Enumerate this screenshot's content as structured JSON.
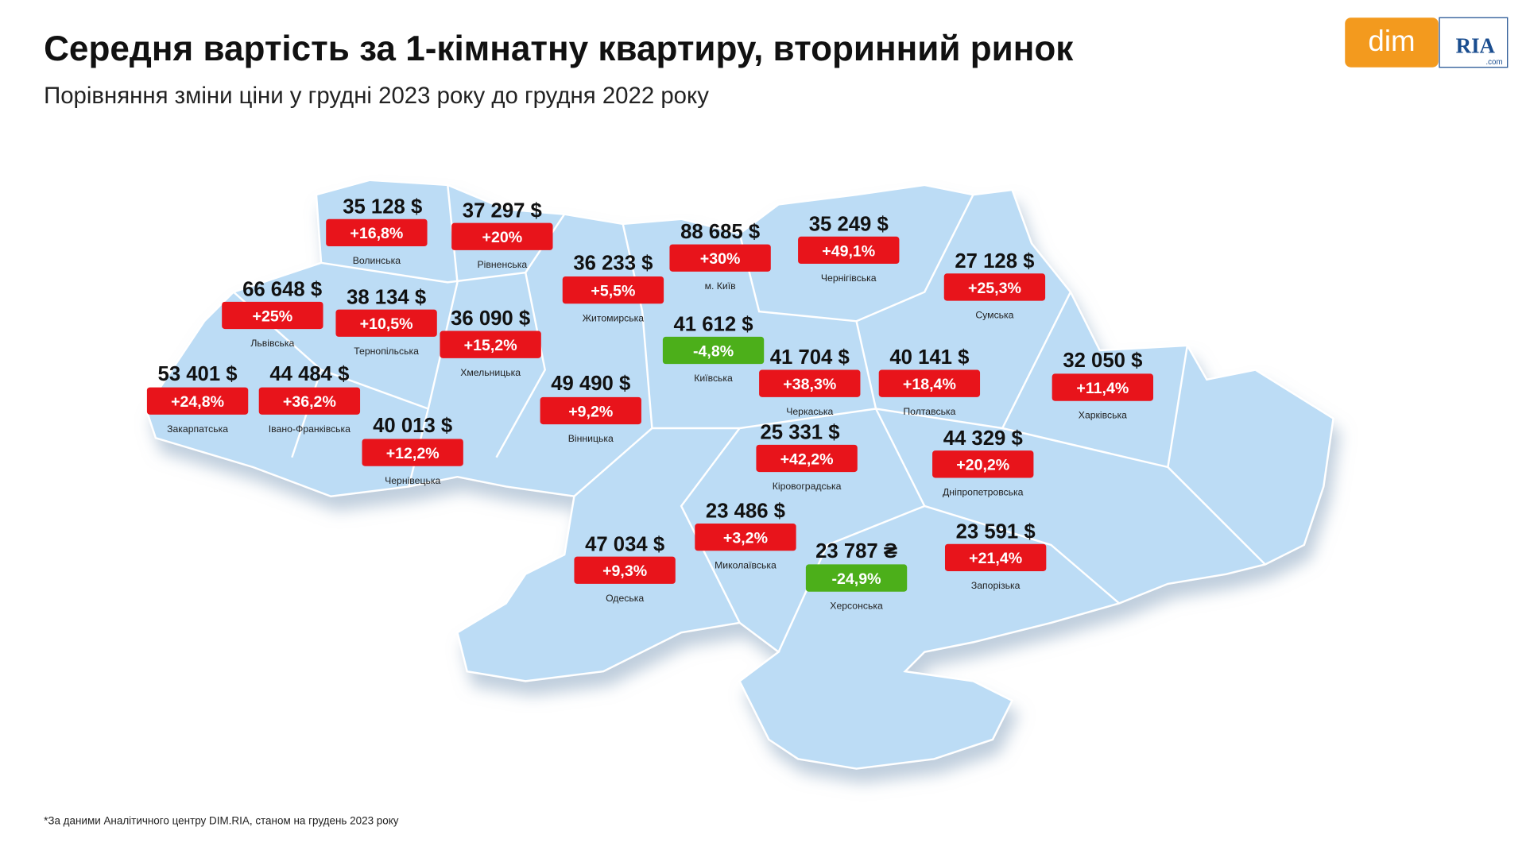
{
  "header": {
    "title": "Середня вартість за 1-кімнатну квартиру, вторинний ринок",
    "subtitle": "Порівняння зміни ціни у грудні 2023 року до грудня 2022 року"
  },
  "logo": {
    "left": "dim",
    "right": "RIA",
    "domain": ".com"
  },
  "regions": [
    {
      "name": "Волинська",
      "price": "35 128 $",
      "change": "+16,8%"
    },
    {
      "name": "Рівненська",
      "price": "37 297 $",
      "change": "+20%"
    },
    {
      "name": "Житомирська",
      "price": "36 233 $",
      "change": "+5,5%"
    },
    {
      "name": "м. Київ",
      "price": "88 685 $",
      "change": "+30%"
    },
    {
      "name": "Чернігівська",
      "price": "35 249 $",
      "change": "+49,1%"
    },
    {
      "name": "Сумська",
      "price": "27 128 $",
      "change": "+25,3%"
    },
    {
      "name": "Львівська",
      "price": "66 648 $",
      "change": "+25%"
    },
    {
      "name": "Тернопільська",
      "price": "38 134 $",
      "change": "+10,5%"
    },
    {
      "name": "Хмельницька",
      "price": "36 090 $",
      "change": "+15,2%"
    },
    {
      "name": "Київська",
      "price": "41 612 $",
      "change": "-4,8%"
    },
    {
      "name": "Черкаська",
      "price": "41 704 $",
      "change": "+38,3%"
    },
    {
      "name": "Полтавська",
      "price": "40 141 $",
      "change": "+18,4%"
    },
    {
      "name": "Харківська",
      "price": "32 050 $",
      "change": "+11,4%"
    },
    {
      "name": "Закарпатська",
      "price": "53 401 $",
      "change": "+24,8%"
    },
    {
      "name": "Івано-Франківська",
      "price": "44 484 $",
      "change": "+36,2%"
    },
    {
      "name": "Вінницька",
      "price": "49 490 $",
      "change": "+9,2%"
    },
    {
      "name": "Чернівецька",
      "price": "40 013 $",
      "change": "+12,2%"
    },
    {
      "name": "Кіровоградська",
      "price": "25 331 $",
      "change": "+42,2%"
    },
    {
      "name": "Дніпропетровська",
      "price": "44 329 $",
      "change": "+20,2%"
    },
    {
      "name": "Миколаївська",
      "price": "23 486 $",
      "change": "+3,2%"
    },
    {
      "name": "Запорізька",
      "price": "23 591 $",
      "change": "+21,4%"
    },
    {
      "name": "Одеська",
      "price": "47 034 $",
      "change": "+9,3%"
    },
    {
      "name": "Херсонська",
      "price": "23 787 ₴",
      "change": "-24,9%"
    }
  ],
  "footnote": "*За даними Аналітичного центру DIM.RIA, станом на грудень 2023 року"
}
